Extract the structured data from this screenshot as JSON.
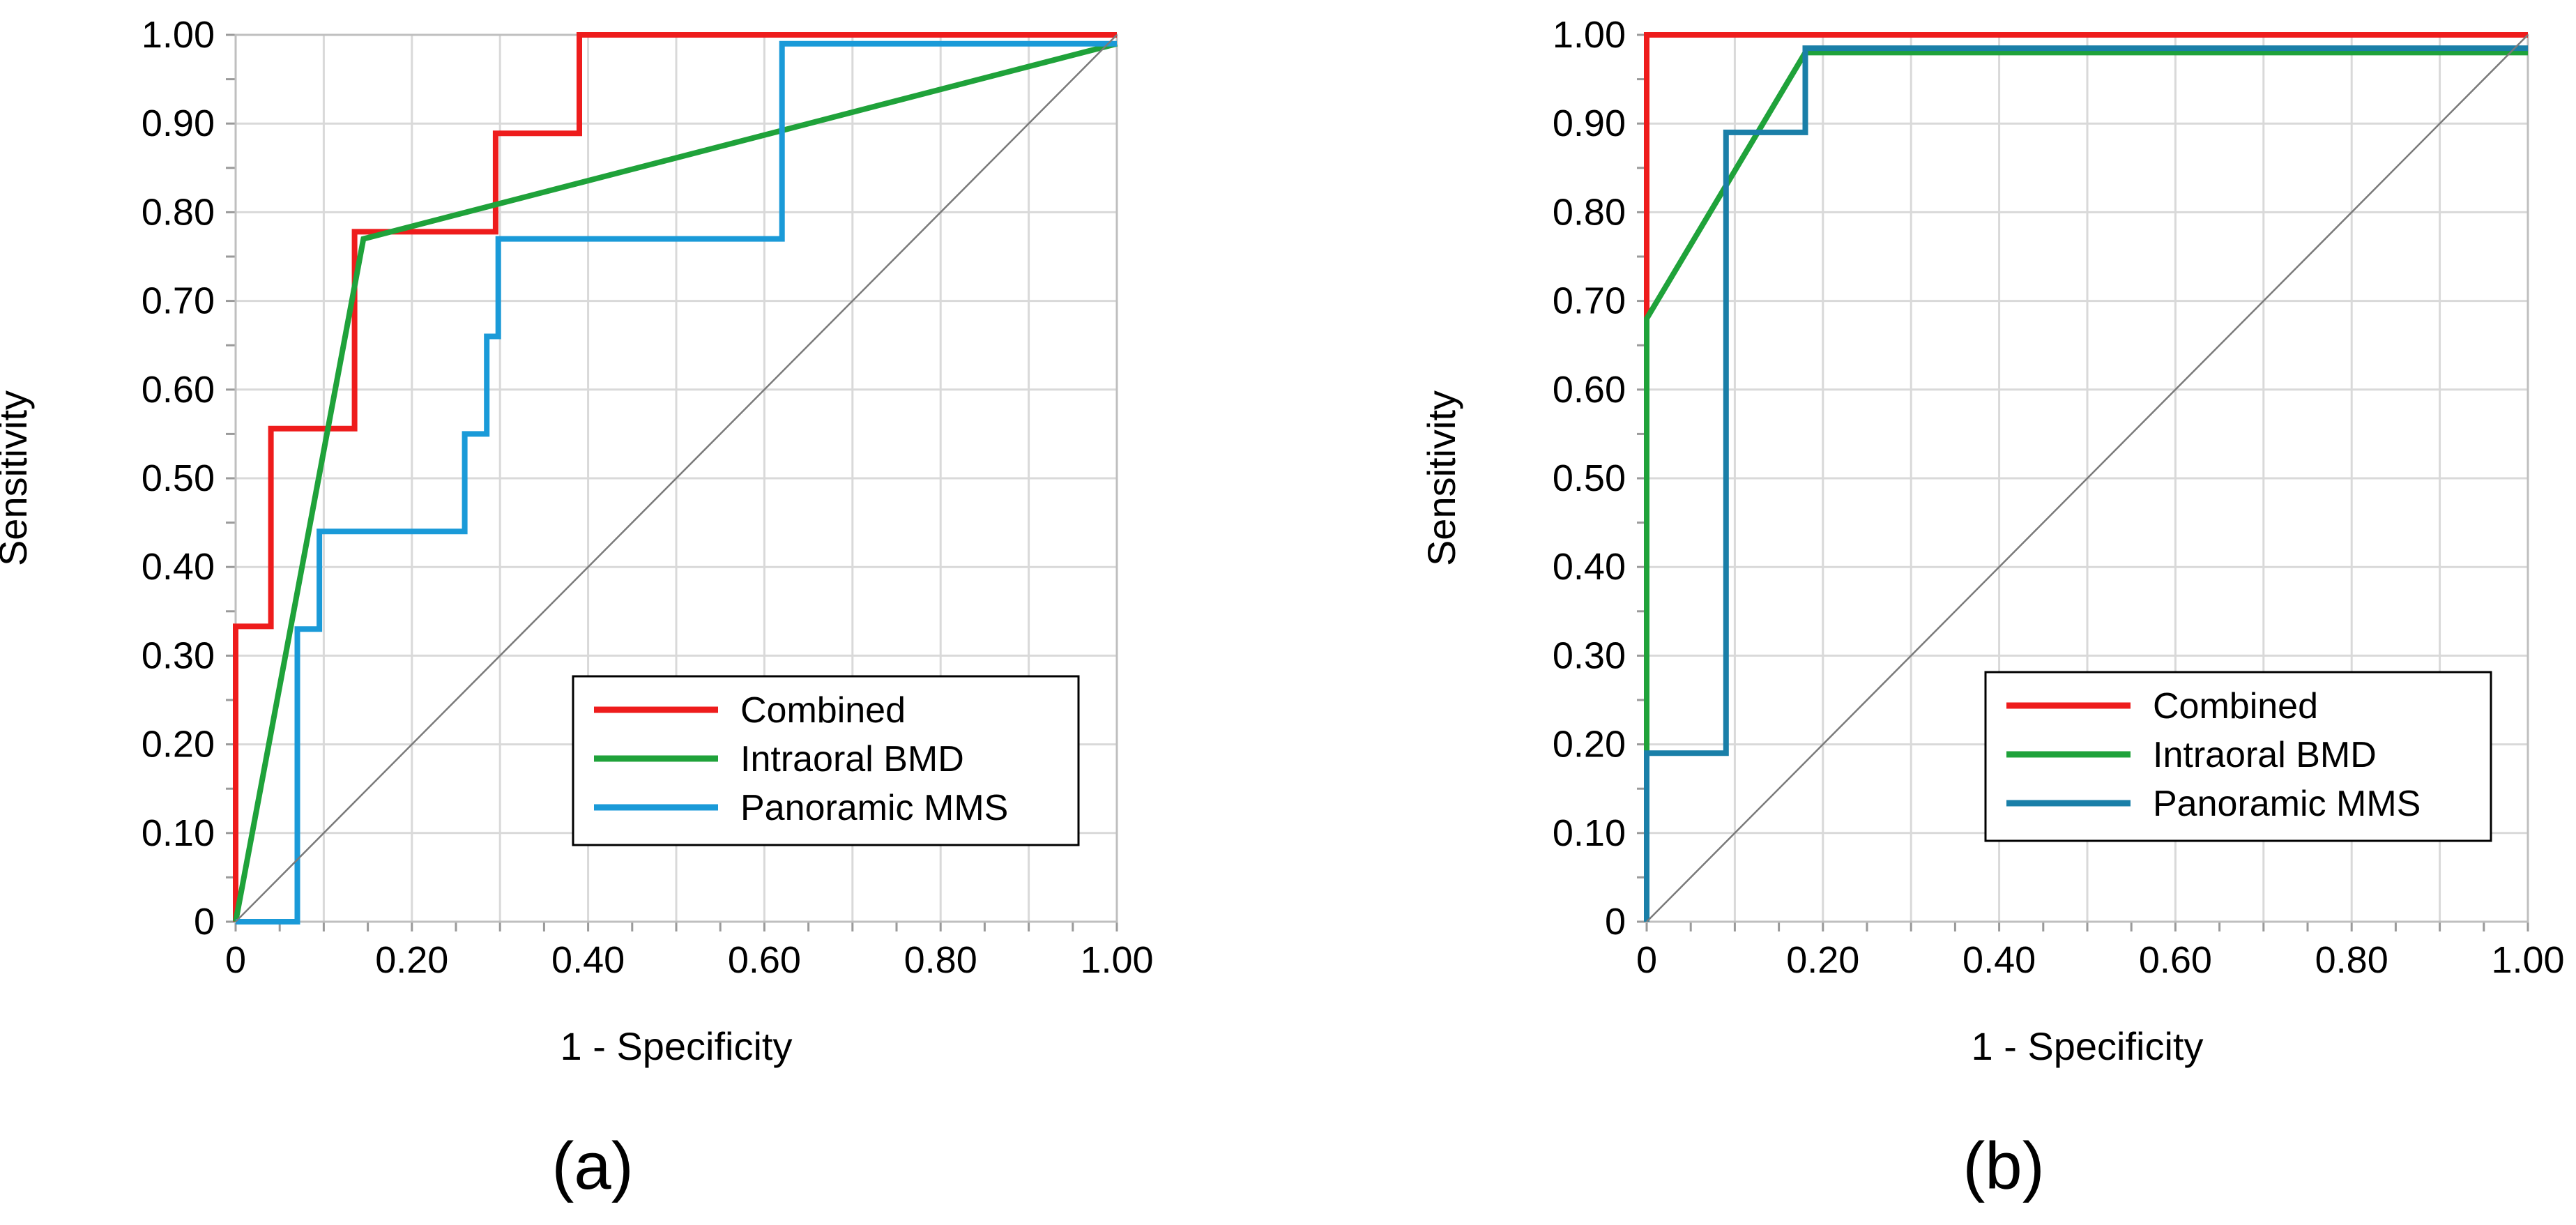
{
  "chart_data": [
    {
      "type": "line",
      "panel_label": "(a)",
      "xlabel": "1 - Specificity",
      "ylabel": "Sensitivity",
      "xlim": [
        0,
        1
      ],
      "ylim": [
        0,
        1
      ],
      "x_ticks": [
        "0",
        "0.20",
        "0.40",
        "0.60",
        "0.80",
        "1.00"
      ],
      "y_ticks": [
        "0",
        "0.10",
        "0.20",
        "0.30",
        "0.40",
        "0.50",
        "0.60",
        "0.70",
        "0.80",
        "0.90",
        "1.00"
      ],
      "grid": true,
      "legend_position": "bottom-right",
      "series": [
        {
          "name": "Combined",
          "color": "#ee1c1c",
          "points": [
            [
              0,
              0
            ],
            [
              0,
              0.333
            ],
            [
              0.04,
              0.333
            ],
            [
              0.04,
              0.556
            ],
            [
              0.135,
              0.556
            ],
            [
              0.135,
              0.778
            ],
            [
              0.295,
              0.778
            ],
            [
              0.295,
              0.889
            ],
            [
              0.39,
              0.889
            ],
            [
              0.39,
              1.0
            ],
            [
              1.0,
              1.0
            ]
          ]
        },
        {
          "name": "Intraoral BMD",
          "color": "#1fa23a",
          "points": [
            [
              0,
              0
            ],
            [
              0.145,
              0.77
            ],
            [
              1.0,
              0.99
            ]
          ]
        },
        {
          "name": "Panoramic MMS",
          "color": "#1a9ad8",
          "points": [
            [
              0,
              0
            ],
            [
              0.07,
              0
            ],
            [
              0.07,
              0.33
            ],
            [
              0.095,
              0.33
            ],
            [
              0.095,
              0.44
            ],
            [
              0.26,
              0.44
            ],
            [
              0.26,
              0.55
            ],
            [
              0.285,
              0.55
            ],
            [
              0.285,
              0.66
            ],
            [
              0.298,
              0.66
            ],
            [
              0.298,
              0.77
            ],
            [
              0.62,
              0.77
            ],
            [
              0.62,
              0.99
            ],
            [
              1.0,
              0.99
            ]
          ]
        },
        {
          "name": "Reference",
          "color": "#7a7a7a",
          "points": [
            [
              0,
              0
            ],
            [
              1,
              1
            ]
          ]
        }
      ]
    },
    {
      "type": "line",
      "panel_label": "(b)",
      "xlabel": "1 - Specificity",
      "ylabel": "Sensitivity",
      "xlim": [
        0,
        1
      ],
      "ylim": [
        0,
        1
      ],
      "x_ticks": [
        "0",
        "0.20",
        "0.40",
        "0.60",
        "0.80",
        "1.00"
      ],
      "y_ticks": [
        "0",
        "0.10",
        "0.20",
        "0.30",
        "0.40",
        "0.50",
        "0.60",
        "0.70",
        "0.80",
        "0.90",
        "1.00"
      ],
      "grid": true,
      "legend_position": "bottom-right",
      "series": [
        {
          "name": "Combined",
          "color": "#ee1c1c",
          "points": [
            [
              0,
              0
            ],
            [
              0,
              1.0
            ],
            [
              1.0,
              1.0
            ]
          ]
        },
        {
          "name": "Intraoral BMD",
          "color": "#1fa23a",
          "points": [
            [
              0,
              0
            ],
            [
              0,
              0.68
            ],
            [
              0.18,
              0.98
            ],
            [
              1.0,
              0.98
            ]
          ]
        },
        {
          "name": "Panoramic MMS",
          "color": "#1a7fa8",
          "points": [
            [
              0,
              0
            ],
            [
              0,
              0.19
            ],
            [
              0.09,
              0.19
            ],
            [
              0.09,
              0.89
            ],
            [
              0.18,
              0.89
            ],
            [
              0.18,
              0.985
            ],
            [
              1.0,
              0.985
            ]
          ]
        },
        {
          "name": "Reference",
          "color": "#7a7a7a",
          "points": [
            [
              0,
              0
            ],
            [
              1,
              1
            ]
          ]
        }
      ]
    }
  ]
}
